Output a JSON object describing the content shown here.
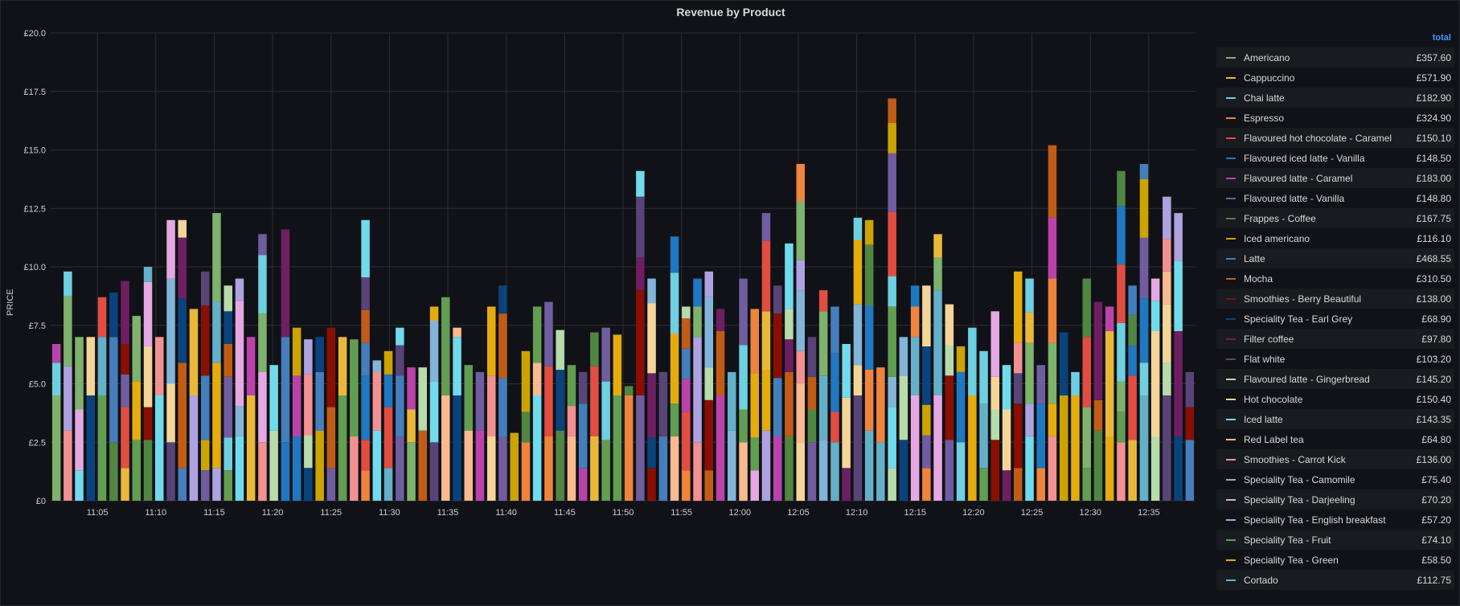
{
  "chart_data": {
    "type": "bar",
    "stacked": true,
    "title": "Revenue by Product",
    "ylabel": "PRICE",
    "ylim": [
      0,
      20
    ],
    "yticks": [
      "£0",
      "£2.5",
      "£5.0",
      "£7.5",
      "£10.0",
      "£12.5",
      "£15.0",
      "£17.5",
      "£20.0"
    ],
    "xticks": [
      "11:05",
      "11:10",
      "11:15",
      "11:20",
      "11:25",
      "11:30",
      "11:35",
      "11:40",
      "11:45",
      "11:50",
      "11:55",
      "12:00",
      "12:05",
      "12:10",
      "12:15",
      "12:20",
      "12:25",
      "12:30",
      "12:35"
    ],
    "x_start": "11:01",
    "x_end": "12:39",
    "totals": [
      6.7,
      9.8,
      7.0,
      7.0,
      8.7,
      8.9,
      9.4,
      7.9,
      10.0,
      7.0,
      12.0,
      12.0,
      8.2,
      9.8,
      12.3,
      9.2,
      9.5,
      7.0,
      11.4,
      5.8,
      11.6,
      7.4,
      6.9,
      7.0,
      7.4,
      7.0,
      6.9,
      12.0,
      6.0,
      6.4,
      7.4,
      5.7,
      5.7,
      8.3,
      8.7,
      7.4,
      5.8,
      5.5,
      8.3,
      9.2,
      2.9,
      6.4,
      8.3,
      8.5,
      7.3,
      5.8,
      5.5,
      7.2,
      7.4,
      7.1,
      4.9,
      14.1,
      9.5,
      5.5,
      11.3,
      8.3,
      9.5,
      9.8,
      8.2,
      5.5,
      9.5,
      8.2,
      12.3,
      9.2,
      11.0,
      14.4,
      7.0,
      9.0,
      8.3,
      6.7,
      12.1,
      12.0,
      5.7,
      17.2,
      7.0,
      9.2,
      9.2,
      11.4,
      8.4,
      6.6,
      7.4,
      6.4,
      8.1,
      5.8,
      9.8,
      9.5,
      5.8,
      15.2,
      7.2,
      5.5,
      9.5,
      8.5,
      8.3,
      14.1,
      9.2,
      14.4,
      9.5,
      13.0,
      12.3,
      5.5
    ],
    "series": [
      {
        "name": "Americano",
        "total": "£357.60",
        "color": "#7eb26d"
      },
      {
        "name": "Cappuccino",
        "total": "£571.90",
        "color": "#eab839"
      },
      {
        "name": "Chai latte",
        "total": "£182.90",
        "color": "#6ed0e0"
      },
      {
        "name": "Espresso",
        "total": "£324.90",
        "color": "#ef843c"
      },
      {
        "name": "Flavoured hot chocolate - Caramel",
        "total": "£150.10",
        "color": "#e24d42"
      },
      {
        "name": "Flavoured iced latte - Vanilla",
        "total": "£148.50",
        "color": "#1f78c1"
      },
      {
        "name": "Flavoured latte - Caramel",
        "total": "£183.00",
        "color": "#ba43a9"
      },
      {
        "name": "Flavoured latte - Vanilla",
        "total": "£148.80",
        "color": "#705da0"
      },
      {
        "name": "Frappes - Coffee",
        "total": "£167.75",
        "color": "#508642"
      },
      {
        "name": "Iced americano",
        "total": "£116.10",
        "color": "#cca300"
      },
      {
        "name": "Latte",
        "total": "£468.55",
        "color": "#447ebc"
      },
      {
        "name": "Mocha",
        "total": "£310.50",
        "color": "#c15c17"
      },
      {
        "name": "Smoothies - Berry Beautiful",
        "total": "£138.00",
        "color": "#890f02"
      },
      {
        "name": "Speciality Tea - Earl Grey",
        "total": "£68.90",
        "color": "#0a437c"
      },
      {
        "name": "Filter coffee",
        "total": "£97.80",
        "color": "#6d1f62"
      },
      {
        "name": "Flat white",
        "total": "£103.20",
        "color": "#584477"
      },
      {
        "name": "Flavoured latte - Gingerbread",
        "total": "£145.20",
        "color": "#b7dbab"
      },
      {
        "name": "Hot chocolate",
        "total": "£150.40",
        "color": "#f4d598"
      },
      {
        "name": "Iced latte",
        "total": "£143.35",
        "color": "#70dbed"
      },
      {
        "name": "Red Label tea",
        "total": "£64.80",
        "color": "#f9ba8f"
      },
      {
        "name": "Smoothies - Carrot Kick",
        "total": "£136.00",
        "color": "#f29191"
      },
      {
        "name": "Speciality Tea - Camomile",
        "total": "£75.40",
        "color": "#82b5d8"
      },
      {
        "name": "Speciality Tea - Darjeeling",
        "total": "£70.20",
        "color": "#e5a8e2"
      },
      {
        "name": "Speciality Tea - English breakfast",
        "total": "£57.20",
        "color": "#aea2e0"
      },
      {
        "name": "Speciality Tea - Fruit",
        "total": "£74.10",
        "color": "#629e51"
      },
      {
        "name": "Speciality Tea - Green",
        "total": "£58.50",
        "color": "#e5ac0e"
      },
      {
        "name": "Cortado",
        "total": "£112.75",
        "color": "#64b0c8"
      }
    ]
  },
  "legend": {
    "total_header": "total"
  }
}
